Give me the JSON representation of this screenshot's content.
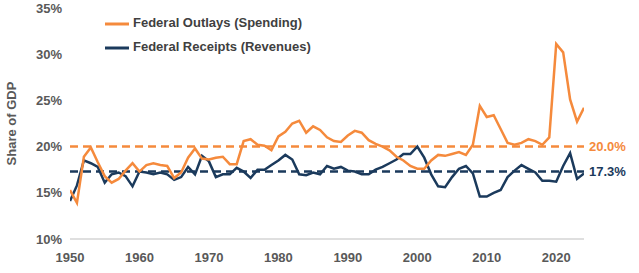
{
  "chart_data": {
    "type": "line",
    "y_label": "Share of GDP",
    "x": [
      1950,
      1951,
      1952,
      1953,
      1954,
      1955,
      1956,
      1957,
      1958,
      1959,
      1960,
      1961,
      1962,
      1963,
      1964,
      1965,
      1966,
      1967,
      1968,
      1969,
      1970,
      1971,
      1972,
      1973,
      1974,
      1975,
      1976,
      1977,
      1978,
      1979,
      1980,
      1981,
      1982,
      1983,
      1984,
      1985,
      1986,
      1987,
      1988,
      1989,
      1990,
      1991,
      1992,
      1993,
      1994,
      1995,
      1996,
      1997,
      1998,
      1999,
      2000,
      2001,
      2002,
      2003,
      2004,
      2005,
      2006,
      2007,
      2008,
      2009,
      2010,
      2011,
      2012,
      2013,
      2014,
      2015,
      2016,
      2017,
      2018,
      2019,
      2020,
      2021,
      2022,
      2023,
      2024
    ],
    "series": [
      {
        "name": "Federal Receipts (Revenues)",
        "color": "#1b3a5c",
        "line_style": "solid",
        "values": [
          14.1,
          15.8,
          18.5,
          18.2,
          17.8,
          16.1,
          17.0,
          17.2,
          16.8,
          15.7,
          17.3,
          17.2,
          17.0,
          17.2,
          17.0,
          16.4,
          16.7,
          17.8,
          17.0,
          19.0,
          18.4,
          16.7,
          17.0,
          17.0,
          17.7,
          17.3,
          16.6,
          17.5,
          17.5,
          18.0,
          18.5,
          19.1,
          18.6,
          17.0,
          16.9,
          17.2,
          17.0,
          17.9,
          17.6,
          17.8,
          17.4,
          17.3,
          17.0,
          17.0,
          17.5,
          17.8,
          18.2,
          18.6,
          19.2,
          19.2,
          20.0,
          18.8,
          17.0,
          15.7,
          15.6,
          16.7,
          17.6,
          17.9,
          17.1,
          14.6,
          14.6,
          15.0,
          15.3,
          16.7,
          17.4,
          18.0,
          17.6,
          17.2,
          16.3,
          16.3,
          16.2,
          17.9,
          19.3,
          16.5,
          17.1
        ]
      },
      {
        "name": "Federal Outlays (Spending)",
        "color": "#f58a3c",
        "line_style": "solid",
        "values": [
          15.3,
          13.9,
          18.9,
          19.9,
          18.3,
          16.8,
          16.1,
          16.5,
          17.4,
          18.2,
          17.3,
          18.0,
          18.2,
          18.0,
          17.9,
          16.6,
          17.2,
          18.8,
          19.8,
          18.7,
          18.6,
          18.8,
          18.9,
          18.1,
          18.1,
          20.6,
          20.8,
          20.2,
          20.1,
          19.6,
          21.1,
          21.6,
          22.5,
          22.8,
          21.5,
          22.2,
          21.8,
          21.0,
          20.6,
          20.5,
          21.2,
          21.7,
          21.5,
          20.7,
          20.3,
          20.0,
          19.6,
          18.9,
          18.5,
          17.9,
          17.6,
          17.6,
          18.5,
          19.1,
          19.0,
          19.2,
          19.4,
          19.1,
          20.2,
          24.4,
          23.2,
          23.4,
          21.9,
          20.4,
          20.2,
          20.4,
          20.8,
          20.6,
          20.2,
          21.0,
          31.1,
          30.2,
          25.1,
          22.7,
          24.2
        ]
      }
    ],
    "reference_lines": [
      {
        "value": 20.0,
        "label": "20.0%",
        "color": "#f58a3c",
        "line_style": "dashed"
      },
      {
        "value": 17.3,
        "label": "17.3%",
        "color": "#1b3a5c",
        "line_style": "dashed"
      }
    ],
    "xlim": [
      1950,
      2024
    ],
    "xticks": [
      1950,
      1960,
      1970,
      1980,
      1990,
      2000,
      2010,
      2020
    ],
    "ylim": [
      10,
      35
    ],
    "yticks": [
      {
        "value": 10,
        "label": "10%"
      },
      {
        "value": 15,
        "label": "15%"
      },
      {
        "value": 20,
        "label": "20%"
      },
      {
        "value": 25,
        "label": "25%"
      },
      {
        "value": 30,
        "label": "30%"
      },
      {
        "value": 35,
        "label": "35%"
      }
    ],
    "grid": false,
    "legend": "top-left"
  }
}
